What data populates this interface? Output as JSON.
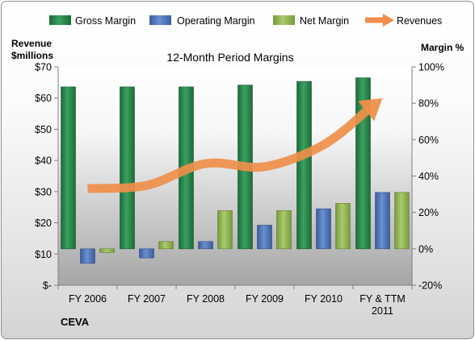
{
  "chart_data": {
    "type": "bar",
    "title": "12-Month Period Margins",
    "company": "CEVA",
    "categories": [
      "FY 2006",
      "FY 2007",
      "FY 2008",
      "FY 2009",
      "FY 2010",
      "FY & TTM 2011"
    ],
    "category_lines": [
      [
        "FY 2006"
      ],
      [
        "FY 2007"
      ],
      [
        "FY 2008"
      ],
      [
        "FY 2009"
      ],
      [
        "FY 2010"
      ],
      [
        "FY & TTM",
        "2011"
      ]
    ],
    "left_axis": {
      "label_lines": [
        "Revenue",
        "$millions"
      ],
      "min": 0,
      "max": 70,
      "step": 10,
      "tick_labels": [
        "$-",
        "$10",
        "$20",
        "$30",
        "$40",
        "$50",
        "$60",
        "$70"
      ]
    },
    "right_axis": {
      "label": "Margin %",
      "min": -20,
      "max": 100,
      "step": 20,
      "tick_labels": [
        "-20%",
        "0%",
        "20%",
        "40%",
        "60%",
        "80%",
        "100%"
      ]
    },
    "series": [
      {
        "name": "Gross Margin",
        "type": "bar",
        "axis": "right",
        "color": "#2e8b4f",
        "values": [
          89,
          89,
          89,
          90,
          92,
          94
        ]
      },
      {
        "name": "Operating Margin",
        "type": "bar",
        "axis": "right",
        "color": "#4f74b8",
        "values": [
          -8,
          -5,
          4,
          13,
          22,
          31
        ]
      },
      {
        "name": "Net Margin",
        "type": "bar",
        "axis": "right",
        "color": "#93b457",
        "values": [
          -2,
          4,
          21,
          21,
          25,
          31
        ]
      },
      {
        "name": "Revenues",
        "type": "line",
        "axis": "left",
        "color": "#ef8f4a",
        "values": [
          31,
          32,
          39,
          38,
          45,
          60
        ]
      }
    ],
    "legend_position": "top",
    "grid": false
  }
}
